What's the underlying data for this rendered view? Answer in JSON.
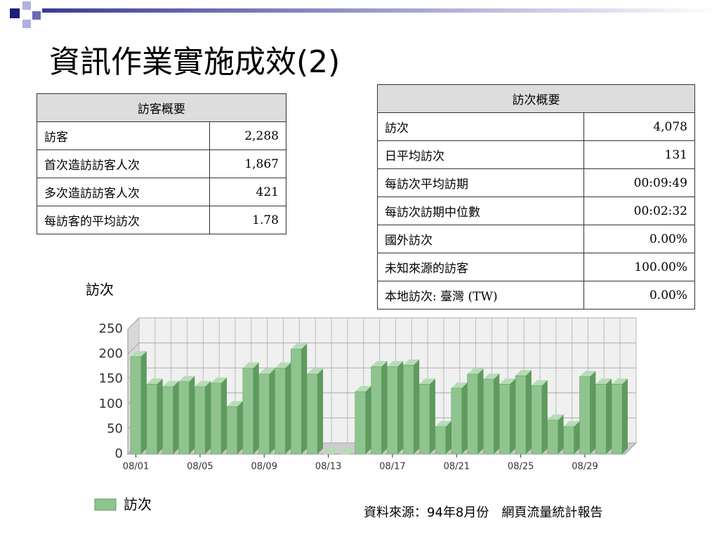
{
  "title": "資訊作業實施成效(2)",
  "visitor_table": {
    "header": "訪客概要",
    "rows": [
      [
        "訪客",
        "2,288"
      ],
      [
        "首次造訪訪客人次",
        "1,867"
      ],
      [
        "多次造訪訪客人次",
        "421"
      ],
      [
        "每訪客的平均訪次",
        "1.78"
      ]
    ]
  },
  "visit_table": {
    "header": "訪次概要",
    "rows": [
      [
        "訪次",
        "4,078"
      ],
      [
        "日平均訪次",
        "131"
      ],
      [
        "每訪次平均訪期",
        "00:09:49"
      ],
      [
        "每訪次訪期中位數",
        "00:02:32"
      ],
      [
        "國外訪次",
        "0.00%"
      ],
      [
        "未知來源的訪客",
        "100.00%"
      ],
      [
        "本地訪次: 臺灣 (TW)",
        "0.00%"
      ]
    ]
  },
  "source": "資料來源：94年8月份　網頁流量統計報告",
  "chart_data": {
    "type": "bar3d",
    "y_label": "訪次",
    "categories": [
      "08/01",
      null,
      null,
      null,
      "08/05",
      null,
      null,
      null,
      "08/09",
      null,
      null,
      null,
      "08/13",
      null,
      null,
      null,
      "08/17",
      null,
      null,
      null,
      "08/21",
      null,
      null,
      null,
      "08/25",
      null,
      null,
      null,
      "08/29",
      null,
      null
    ],
    "series": [
      {
        "name": "訪次",
        "color": "#8fc48f",
        "values": [
          195,
          140,
          135,
          145,
          135,
          142,
          95,
          172,
          160,
          172,
          210,
          160,
          0,
          0,
          125,
          175,
          175,
          178,
          140,
          55,
          132,
          160,
          150,
          140,
          157,
          137,
          68,
          55,
          155,
          140,
          140
        ]
      }
    ],
    "ylim": [
      0,
      250
    ],
    "yticks": [
      0,
      50,
      100,
      150,
      200,
      250
    ],
    "grid": true
  }
}
